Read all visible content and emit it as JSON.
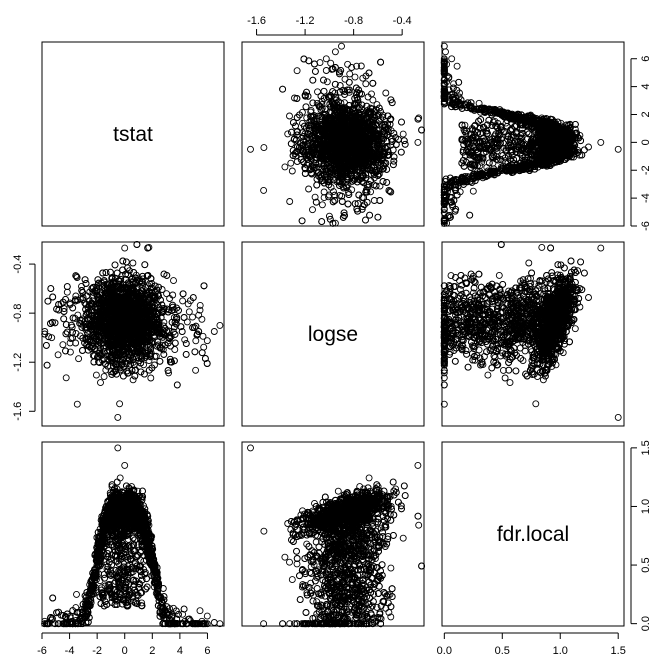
{
  "chart_data": {
    "type": "scatter",
    "layout": "pairs",
    "variables": [
      "tstat",
      "logse",
      "fdr.local"
    ],
    "ranges": {
      "tstat": [
        -6.0,
        7.2
      ],
      "logse": [
        -1.72,
        -0.22
      ],
      "fdr.local": [
        -0.02,
        1.55
      ]
    },
    "ticks": {
      "tstat": [
        "-6",
        "-4",
        "-2",
        "0",
        "2",
        "4",
        "6"
      ],
      "logse": [
        "-1.6",
        "-1.2",
        "-0.8",
        "-0.4"
      ],
      "fdr.local": [
        "0.0",
        "0.5",
        "1.0",
        "1.5"
      ]
    },
    "tick_values": {
      "tstat": [
        -6,
        -4,
        -2,
        0,
        2,
        4,
        6
      ],
      "logse": [
        -1.6,
        -1.2,
        -0.8,
        -0.4
      ],
      "fdr.local": [
        0,
        0.5,
        1.0,
        1.5
      ]
    },
    "axes": {
      "top": [
        "logse"
      ],
      "right": [
        "tstat",
        "fdr.local"
      ],
      "left": [
        "logse"
      ],
      "bottom": [
        "tstat",
        "fdr.local"
      ]
    },
    "marker": "open-circle",
    "marker_color": "#000000",
    "n_points": 3000,
    "points": [
      {
        "tstat": 6.9,
        "logse": -0.9,
        "fdr.local": 0.0
      },
      {
        "tstat": 6.5,
        "logse": -0.95,
        "fdr.local": 0.01
      },
      {
        "tstat": -5.8,
        "logse": -0.95,
        "fdr.local": 0.02
      },
      {
        "tstat": -5.3,
        "logse": -1.0,
        "fdr.local": 0.03
      },
      {
        "tstat": 5.6,
        "logse": -0.85,
        "fdr.local": 0.02
      },
      {
        "tstat": 0.0,
        "logse": -0.27,
        "fdr.local": 1.35
      },
      {
        "tstat": -0.5,
        "logse": -1.65,
        "fdr.local": 1.5
      },
      {
        "tstat": 2.8,
        "logse": -1.1,
        "fdr.local": 0.3
      },
      {
        "tstat": -3.5,
        "logse": -0.5,
        "fdr.local": 0.25
      },
      {
        "tstat": 4.2,
        "logse": -0.7,
        "fdr.local": 0.08
      }
    ]
  }
}
